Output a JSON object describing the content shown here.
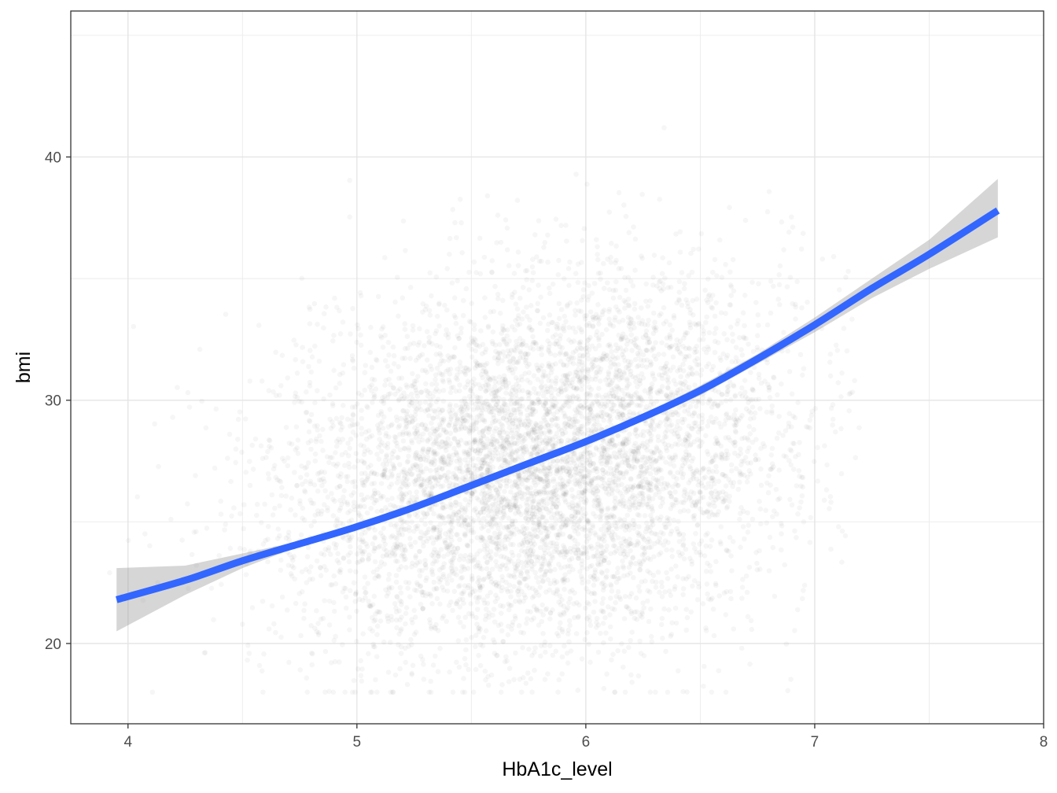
{
  "chart_data": {
    "type": "scatter",
    "title": "",
    "xlabel": "HbA1c_level",
    "ylabel": "bmi",
    "xlim": [
      3.75,
      8.0
    ],
    "ylim": [
      16.7,
      46.0
    ],
    "x_ticks": [
      4,
      5,
      6,
      7,
      8
    ],
    "x_tick_labels": [
      "4",
      "5",
      "6",
      "7",
      "8"
    ],
    "y_ticks": [
      20,
      30,
      40
    ],
    "y_tick_labels": [
      "20",
      "30",
      "40"
    ],
    "grid": true,
    "legend": "none",
    "points": {
      "description_of_distribution": "dense cloud of semi-transparent black points centered near HbA1c 5.8, bmi 27",
      "center": [
        5.8,
        27.3
      ],
      "x_range": [
        3.9,
        7.2
      ],
      "y_range": [
        18.0,
        45.0
      ],
      "floor_value": 18.0,
      "ceiling_value": 45.0,
      "color": "#000000",
      "alpha": 0.035
    },
    "series": [
      {
        "name": "",
        "kind": "smooth",
        "color": "#3366ff",
        "band_color": "#999999",
        "x": [
          3.95,
          4.25,
          4.5,
          4.75,
          5.0,
          5.25,
          5.5,
          5.75,
          6.0,
          6.25,
          6.5,
          6.75,
          7.0,
          7.25,
          7.5,
          7.8
        ],
        "y": [
          21.8,
          22.6,
          23.4,
          24.1,
          24.8,
          25.6,
          26.5,
          27.4,
          28.3,
          29.3,
          30.4,
          31.7,
          33.1,
          34.6,
          36.0,
          37.8
        ],
        "ci_low": [
          20.5,
          22.0,
          23.1,
          24.0,
          24.7,
          25.5,
          26.4,
          27.3,
          28.2,
          29.2,
          30.2,
          31.5,
          32.8,
          34.2,
          35.4,
          36.7
        ],
        "ci_high": [
          23.1,
          23.2,
          23.7,
          24.2,
          24.9,
          25.7,
          26.6,
          27.5,
          28.4,
          29.4,
          30.6,
          31.9,
          33.4,
          35.0,
          36.6,
          39.1
        ]
      }
    ]
  }
}
